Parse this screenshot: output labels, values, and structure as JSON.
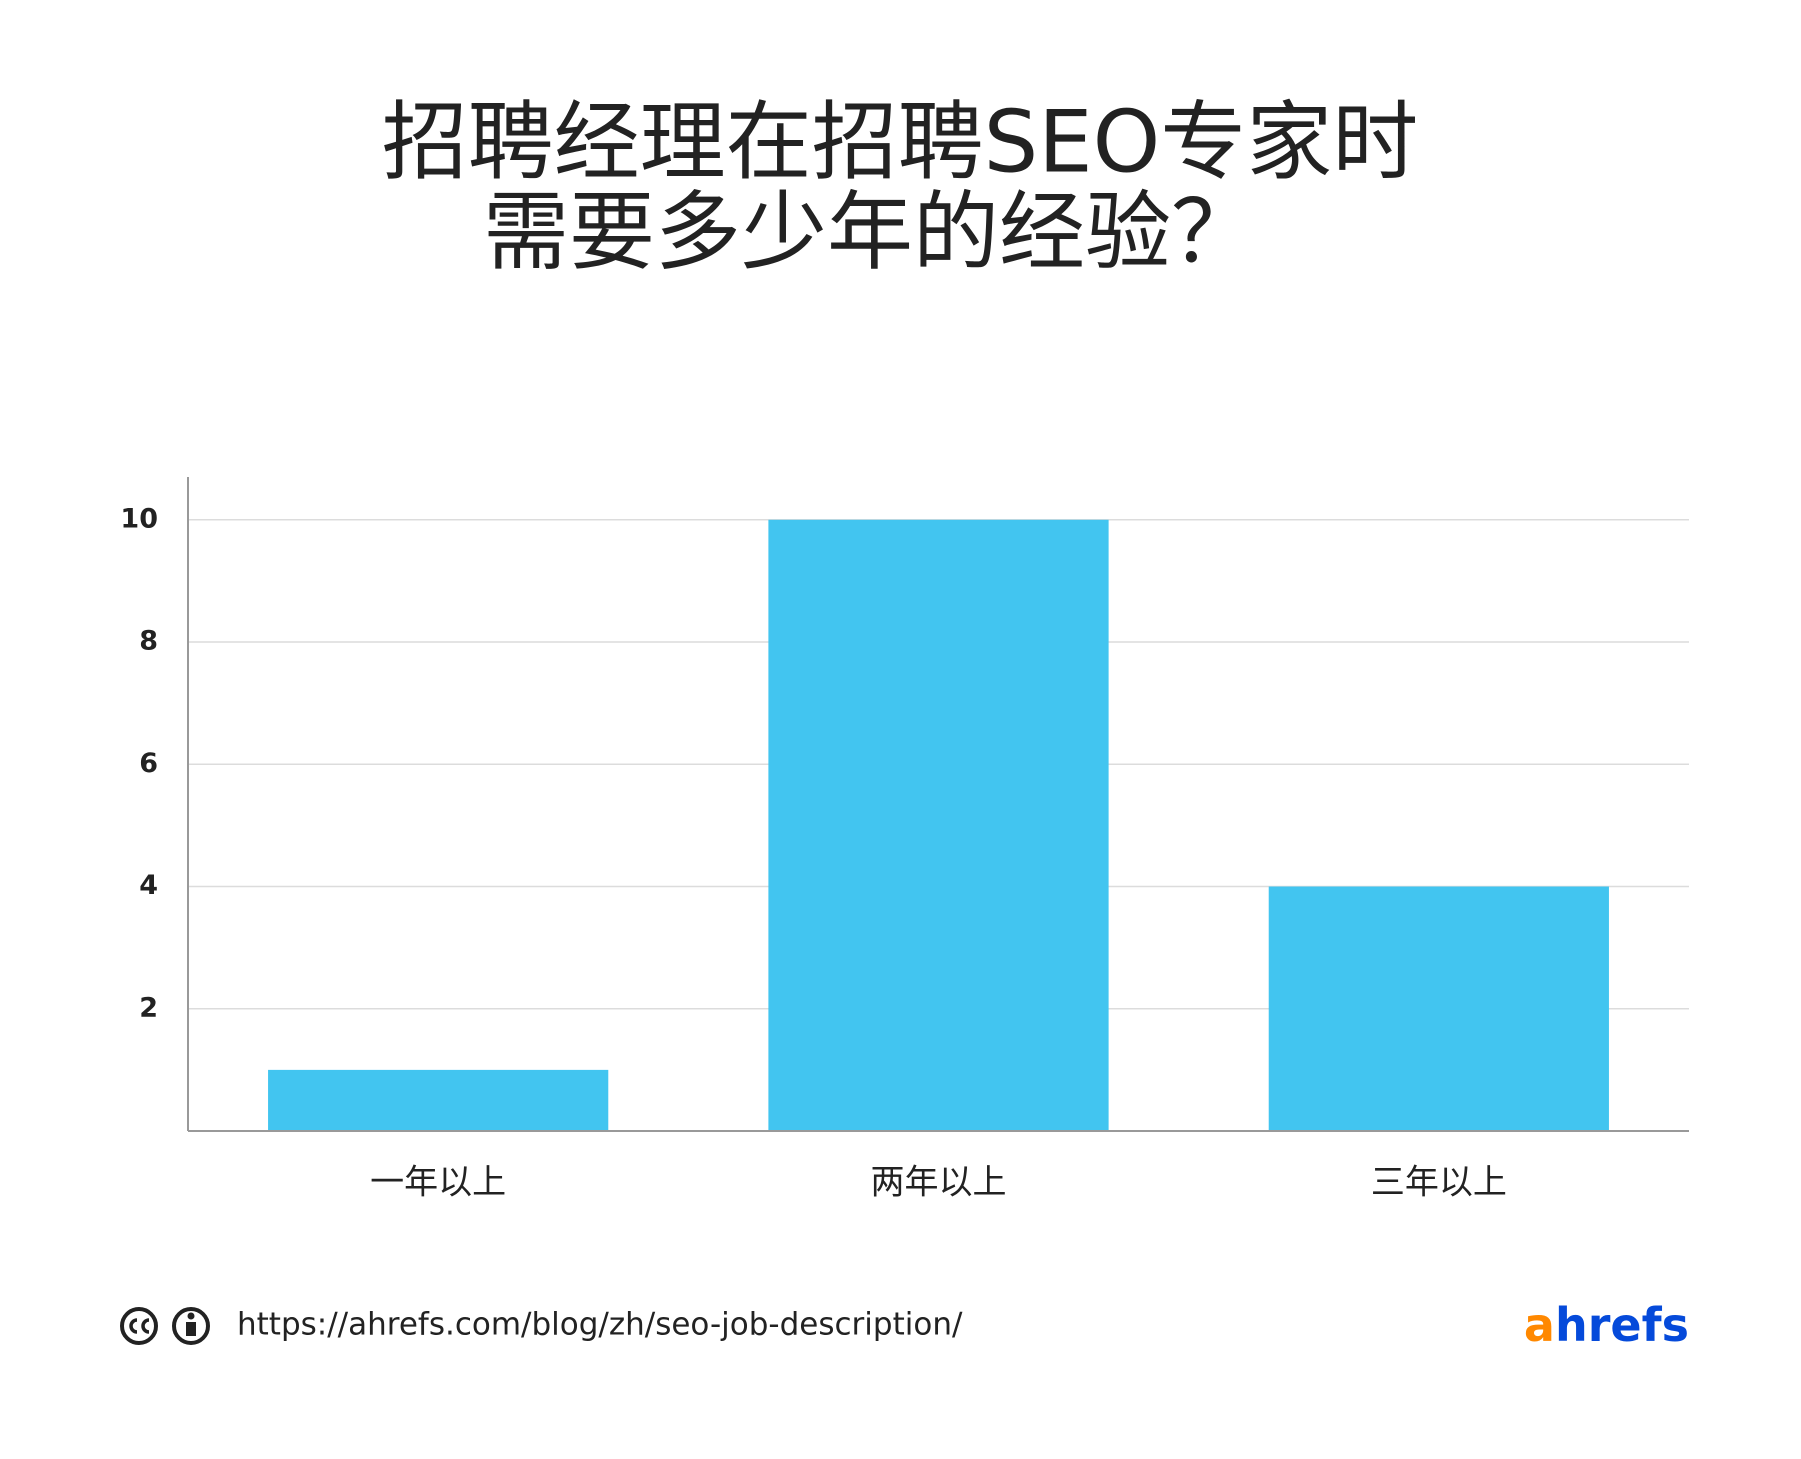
{
  "chart_data": {
    "type": "bar",
    "title": [
      "招聘经理在招聘SEO专家时",
      "需要多少年的经验？"
    ],
    "categories": [
      "一年以上",
      "两年以上",
      "三年以上"
    ],
    "values": [
      1,
      10,
      4
    ],
    "color": "#42c5f0",
    "ylim": [
      0,
      10.7
    ],
    "yticks": [
      2,
      4,
      6,
      8,
      10
    ],
    "grid": true
  },
  "footer": {
    "url": "https://ahrefs.com/blog/zh/seo-job-description/",
    "logo": [
      "a",
      "hrefs"
    ]
  }
}
